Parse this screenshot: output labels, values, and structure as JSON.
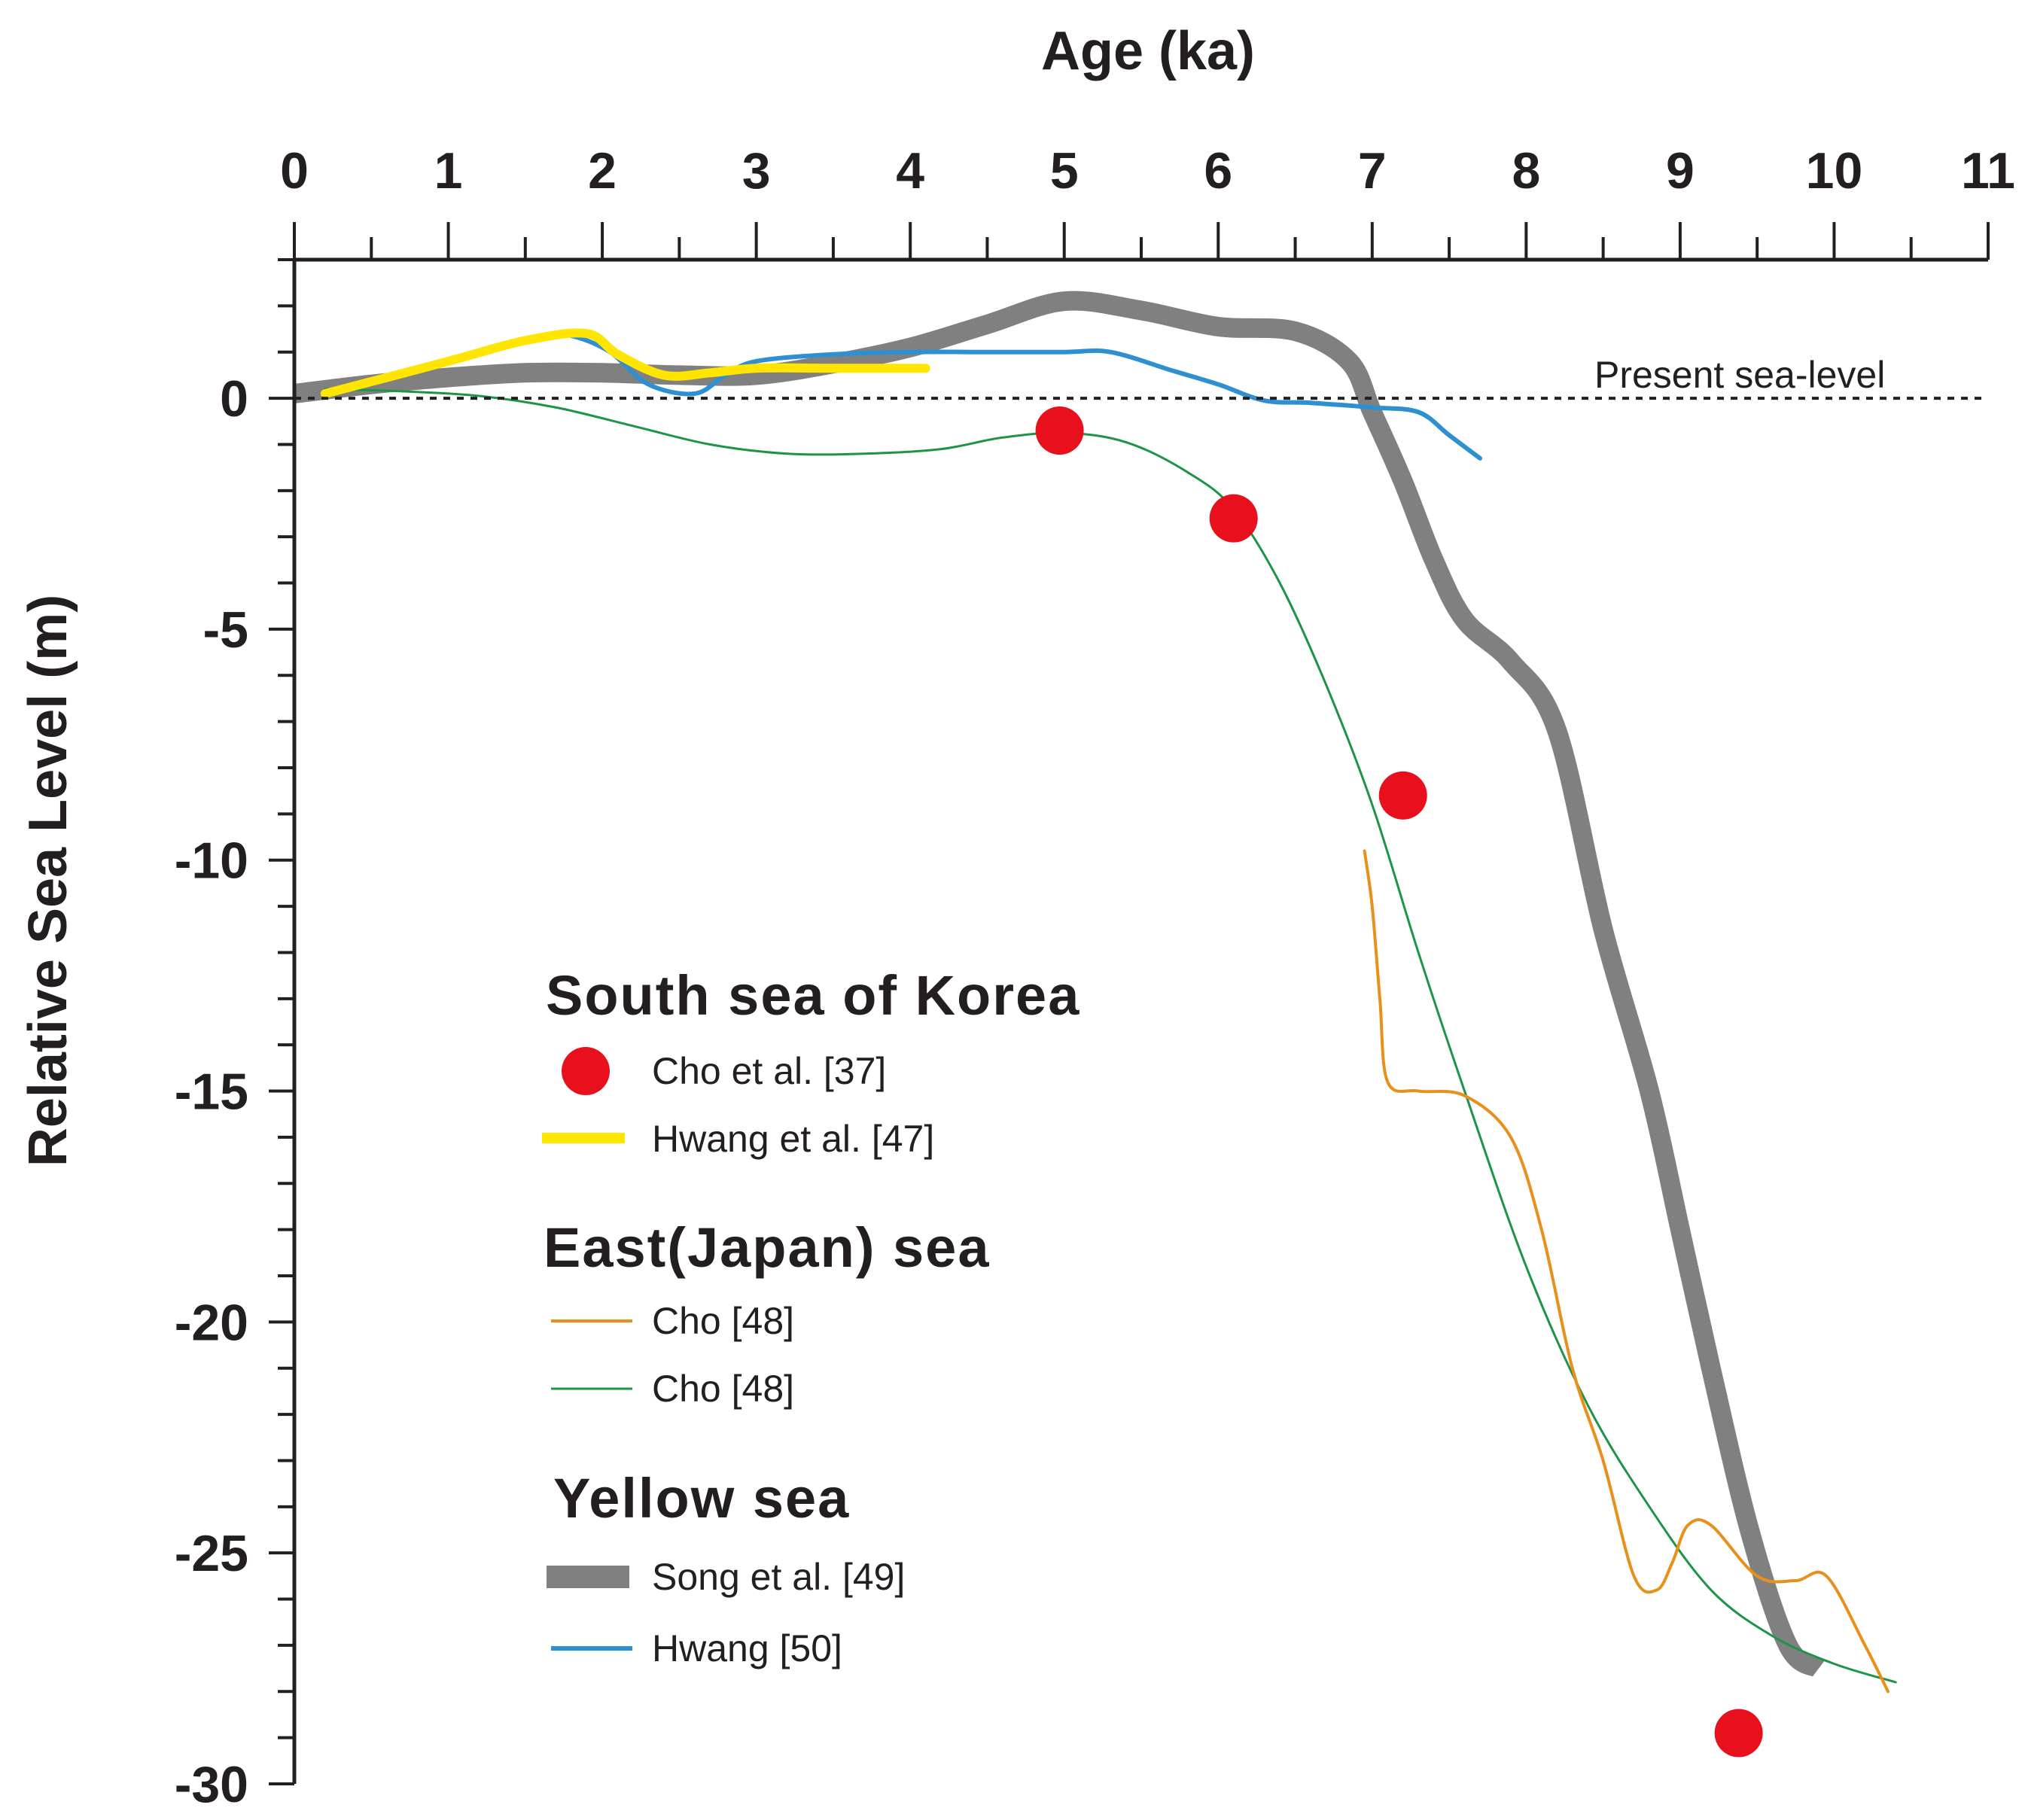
{
  "chart_data": {
    "type": "line",
    "title": "",
    "xlabel": "Age (ka)",
    "ylabel": "Relative Sea Level (m)",
    "xlim": [
      0,
      11
    ],
    "ylim": [
      -30,
      3
    ],
    "x_ticks": [
      0,
      1,
      2,
      3,
      4,
      5,
      6,
      7,
      8,
      9,
      10,
      11
    ],
    "y_ticks": [
      0,
      -5,
      -10,
      -15,
      -20,
      -25,
      -30
    ],
    "y_tick_labels": [
      "0",
      "-5",
      "-10",
      "-15",
      "-20",
      "-25",
      "-30"
    ],
    "x_axis_position": "top",
    "grid": false,
    "reference_line": {
      "y": 0,
      "label": "Present sea-level",
      "style": "dotted",
      "color": "#231f20"
    },
    "legend": {
      "position": "center-left",
      "groups": [
        {
          "title": "South sea of Korea",
          "entries": [
            {
              "label": "Cho et al. [37]",
              "series": "cho37"
            },
            {
              "label": "Hwang et al. [47]",
              "series": "hwang47"
            }
          ]
        },
        {
          "title": "East(Japan) sea",
          "entries": [
            {
              "label": "Cho [48]",
              "series": "cho48_orange"
            },
            {
              "label": "Cho [48]",
              "series": "cho48_green"
            }
          ]
        },
        {
          "title": "Yellow sea",
          "entries": [
            {
              "label": "Song et al. [49]",
              "series": "song49"
            },
            {
              "label": "Hwang [50]",
              "series": "hwang50"
            }
          ]
        }
      ]
    },
    "series": [
      {
        "id": "song49",
        "name": "Song et al. [49]",
        "style": "thick-line",
        "color": "#808080",
        "x": [
          0,
          0.5,
          1,
          1.5,
          2,
          2.5,
          3,
          3.5,
          4,
          4.5,
          5,
          5.5,
          6,
          6.5,
          6.85,
          7.0,
          7.2,
          7.4,
          7.6,
          7.9,
          8.2,
          8.5,
          8.8,
          9.0,
          9.2,
          9.45,
          9.7,
          9.9
        ],
        "y": [
          0.1,
          0.3,
          0.45,
          0.55,
          0.55,
          0.5,
          0.5,
          0.75,
          1.1,
          1.6,
          2.1,
          1.9,
          1.55,
          1.45,
          0.8,
          -0.3,
          -1.8,
          -3.5,
          -4.8,
          -5.7,
          -7.2,
          -11.5,
          -15.0,
          -18.0,
          -21.0,
          -24.5,
          -27.0,
          -27.5
        ]
      },
      {
        "id": "hwang50",
        "name": "Hwang [50]",
        "style": "line",
        "color": "#2e8fd1",
        "x": [
          1.2,
          1.6,
          1.8,
          2.05,
          2.3,
          2.6,
          2.8,
          3.0,
          3.5,
          4.0,
          4.5,
          5.0,
          5.3,
          5.7,
          6.0,
          6.3,
          6.6,
          7.0,
          7.3,
          7.5,
          7.7
        ],
        "y": [
          1.0,
          1.35,
          1.35,
          1.0,
          0.3,
          0.1,
          0.5,
          0.8,
          0.95,
          1.0,
          1.0,
          1.0,
          1.0,
          0.6,
          0.3,
          -0.05,
          -0.1,
          -0.2,
          -0.3,
          -0.8,
          -1.3
        ]
      },
      {
        "id": "hwang47",
        "name": "Hwang et al. [47]",
        "style": "line",
        "color": "#ffe500",
        "x": [
          0.2,
          1.0,
          1.5,
          1.9,
          2.1,
          2.4,
          2.7,
          3.0,
          3.5,
          4.1
        ],
        "y": [
          0.1,
          0.8,
          1.25,
          1.4,
          0.95,
          0.5,
          0.55,
          0.65,
          0.65,
          0.65
        ]
      },
      {
        "id": "cho48_green",
        "name": "Cho [48]",
        "style": "line",
        "color": "#1e9447",
        "x": [
          0.2,
          0.7,
          1.2,
          1.7,
          2.2,
          2.7,
          3.2,
          3.7,
          4.2,
          4.6,
          5.0,
          5.4,
          5.8,
          6.1,
          6.4,
          6.7,
          7.0,
          7.3,
          7.6,
          8.0,
          8.4,
          8.8,
          9.2,
          9.6,
          10.0,
          10.4
        ],
        "y": [
          0.2,
          0.15,
          0.05,
          -0.2,
          -0.6,
          -1.0,
          -1.2,
          -1.2,
          -1.1,
          -0.85,
          -0.75,
          -0.95,
          -1.6,
          -2.4,
          -4.0,
          -6.2,
          -8.8,
          -12.0,
          -15.0,
          -18.8,
          -21.8,
          -24.0,
          -25.8,
          -26.8,
          -27.4,
          -27.8
        ]
      },
      {
        "id": "cho48_orange",
        "name": "Cho [48]",
        "style": "line",
        "color": "#e8901b",
        "x": [
          6.95,
          7.0,
          7.05,
          7.1,
          7.3,
          7.6,
          7.9,
          8.1,
          8.3,
          8.5,
          8.7,
          8.85,
          8.95,
          9.05,
          9.2,
          9.5,
          9.75,
          9.95,
          10.2,
          10.35
        ],
        "y": [
          -9.8,
          -11.0,
          -13.0,
          -14.8,
          -15.0,
          -15.1,
          -16.0,
          -18.0,
          -21.0,
          -23.0,
          -25.5,
          -25.8,
          -25.2,
          -24.4,
          -24.4,
          -25.5,
          -25.6,
          -25.5,
          -27.0,
          -28.0
        ]
      },
      {
        "id": "cho37",
        "name": "Cho et al. [37]",
        "style": "scatter",
        "color": "#e8101c",
        "x": [
          4.97,
          6.1,
          7.2,
          9.38
        ],
        "y": [
          -0.7,
          -2.6,
          -8.6,
          -28.9
        ]
      }
    ]
  }
}
